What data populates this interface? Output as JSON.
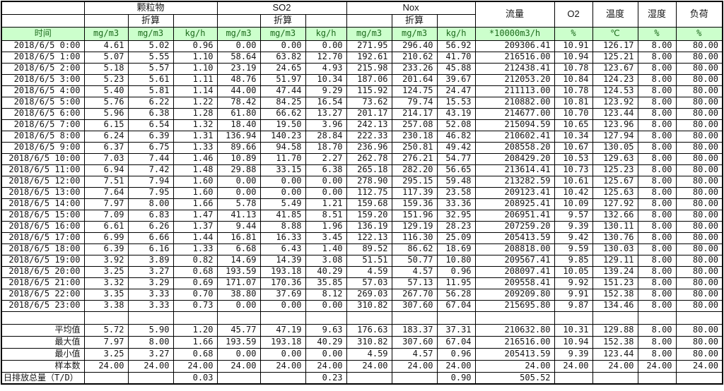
{
  "table": {
    "time_label": "时间",
    "groups": {
      "pm": "颗粒物",
      "so2": "SO2",
      "nox": "Nox",
      "flow": "流量",
      "o2": "O2",
      "temp": "温度",
      "humidity": "湿度",
      "load": "负荷"
    },
    "subheader": "折算",
    "units": [
      "mg/m3",
      "mg/m3",
      "kg/h",
      "mg/m3",
      "mg/m3",
      "kg/h",
      "mg/m3",
      "mg/m3",
      "kg/h",
      "*10000m3/h",
      "%",
      "℃",
      "%",
      "%"
    ],
    "rows": [
      {
        "time": "2018/6/5 0:00",
        "values": [
          "4.61",
          "5.02",
          "0.96",
          "0.00",
          "0.00",
          "0.00",
          "271.95",
          "296.40",
          "56.92",
          "209306.41",
          "10.91",
          "126.17",
          "8.00",
          "80.00"
        ]
      },
      {
        "time": "2018/6/5 1:00",
        "values": [
          "5.07",
          "5.55",
          "1.10",
          "58.64",
          "63.82",
          "12.70",
          "192.61",
          "210.62",
          "41.70",
          "216516.00",
          "10.94",
          "125.21",
          "8.00",
          "80.00"
        ]
      },
      {
        "time": "2018/6/5 2:00",
        "values": [
          "5.18",
          "5.57",
          "1.10",
          "23.19",
          "24.65",
          "4.93",
          "215.98",
          "233.26",
          "45.88",
          "212438.41",
          "10.78",
          "123.67",
          "8.00",
          "80.00"
        ]
      },
      {
        "time": "2018/6/5 3:00",
        "values": [
          "5.23",
          "5.61",
          "1.11",
          "48.76",
          "51.97",
          "10.34",
          "187.06",
          "201.64",
          "39.67",
          "212053.20",
          "10.84",
          "124.23",
          "8.00",
          "80.00"
        ]
      },
      {
        "time": "2018/6/5 4:00",
        "values": [
          "5.40",
          "5.81",
          "1.14",
          "44.00",
          "47.44",
          "9.29",
          "115.92",
          "124.75",
          "24.47",
          "211113.00",
          "10.78",
          "124.53",
          "8.00",
          "80.00"
        ]
      },
      {
        "time": "2018/6/5 5:00",
        "values": [
          "5.76",
          "6.22",
          "1.22",
          "78.42",
          "84.25",
          "16.54",
          "73.62",
          "79.74",
          "15.53",
          "210882.00",
          "10.81",
          "123.92",
          "8.00",
          "80.00"
        ]
      },
      {
        "time": "2018/6/5 6:00",
        "values": [
          "5.96",
          "6.38",
          "1.28",
          "61.80",
          "66.62",
          "13.27",
          "201.17",
          "214.17",
          "43.19",
          "214677.00",
          "10.70",
          "123.44",
          "8.00",
          "80.00"
        ]
      },
      {
        "time": "2018/6/5 7:00",
        "values": [
          "6.15",
          "6.54",
          "1.32",
          "18.40",
          "19.50",
          "3.96",
          "242.13",
          "257.08",
          "52.08",
          "215094.59",
          "10.65",
          "123.96",
          "8.00",
          "80.00"
        ]
      },
      {
        "time": "2018/6/5 8:00",
        "values": [
          "6.24",
          "6.39",
          "1.31",
          "136.94",
          "140.23",
          "28.84",
          "222.33",
          "230.18",
          "46.82",
          "210602.41",
          "10.34",
          "127.94",
          "8.00",
          "80.00"
        ]
      },
      {
        "time": "2018/6/5 9:00",
        "values": [
          "6.37",
          "6.75",
          "1.33",
          "89.66",
          "94.58",
          "18.70",
          "236.96",
          "250.81",
          "49.42",
          "208558.20",
          "10.67",
          "130.05",
          "8.00",
          "80.00"
        ]
      },
      {
        "time": "2018/6/5 10:00",
        "values": [
          "7.03",
          "7.44",
          "1.46",
          "10.89",
          "11.70",
          "2.27",
          "262.78",
          "276.21",
          "54.77",
          "208429.20",
          "10.53",
          "129.63",
          "8.00",
          "80.00"
        ]
      },
      {
        "time": "2018/6/5 11:00",
        "values": [
          "6.94",
          "7.42",
          "1.48",
          "29.88",
          "33.15",
          "6.38",
          "265.18",
          "282.20",
          "56.65",
          "213614.41",
          "10.73",
          "125.23",
          "8.00",
          "80.00"
        ]
      },
      {
        "time": "2018/6/5 12:00",
        "values": [
          "7.51",
          "7.94",
          "1.60",
          "0.00",
          "0.00",
          "0.00",
          "278.90",
          "295.15",
          "59.48",
          "213282.59",
          "10.61",
          "125.67",
          "8.00",
          "80.00"
        ]
      },
      {
        "time": "2018/6/5 13:00",
        "values": [
          "7.64",
          "7.95",
          "1.60",
          "0.00",
          "0.00",
          "0.00",
          "112.75",
          "117.39",
          "23.58",
          "209123.41",
          "10.42",
          "125.63",
          "8.00",
          "80.00"
        ]
      },
      {
        "time": "2018/6/5 14:00",
        "values": [
          "7.97",
          "8.00",
          "1.66",
          "5.78",
          "5.49",
          "1.21",
          "159.68",
          "159.36",
          "33.36",
          "208925.41",
          "10.09",
          "127.92",
          "8.00",
          "80.00"
        ]
      },
      {
        "time": "2018/6/5 15:00",
        "values": [
          "7.09",
          "6.83",
          "1.47",
          "41.13",
          "41.85",
          "8.51",
          "159.20",
          "151.96",
          "32.95",
          "206951.41",
          "9.57",
          "132.66",
          "8.00",
          "80.00"
        ]
      },
      {
        "time": "2018/6/5 16:00",
        "values": [
          "6.61",
          "6.26",
          "1.37",
          "9.44",
          "8.88",
          "1.96",
          "136.19",
          "129.19",
          "28.23",
          "207259.20",
          "9.39",
          "130.11",
          "8.00",
          "80.00"
        ]
      },
      {
        "time": "2018/6/5 17:00",
        "values": [
          "6.99",
          "6.66",
          "1.44",
          "16.81",
          "16.33",
          "3.45",
          "122.13",
          "116.30",
          "25.09",
          "205413.59",
          "9.42",
          "130.76",
          "8.00",
          "80.00"
        ]
      },
      {
        "time": "2018/6/5 18:00",
        "values": [
          "6.39",
          "6.16",
          "1.33",
          "6.68",
          "6.43",
          "1.40",
          "89.52",
          "86.62",
          "18.69",
          "208818.00",
          "9.59",
          "130.03",
          "8.00",
          "80.00"
        ]
      },
      {
        "time": "2018/6/5 19:00",
        "values": [
          "3.92",
          "3.89",
          "0.82",
          "14.69",
          "14.39",
          "3.08",
          "51.51",
          "50.77",
          "10.80",
          "209567.41",
          "9.85",
          "129.11",
          "8.00",
          "80.00"
        ]
      },
      {
        "time": "2018/6/5 20:00",
        "values": [
          "3.25",
          "3.27",
          "0.68",
          "193.59",
          "193.18",
          "40.29",
          "4.59",
          "4.57",
          "0.96",
          "208097.41",
          "10.05",
          "139.24",
          "8.00",
          "80.00"
        ]
      },
      {
        "time": "2018/6/5 21:00",
        "values": [
          "3.32",
          "3.29",
          "0.69",
          "171.07",
          "170.36",
          "35.85",
          "57.03",
          "57.13",
          "11.95",
          "209558.41",
          "9.92",
          "151.23",
          "8.00",
          "80.00"
        ]
      },
      {
        "time": "2018/6/5 22:00",
        "values": [
          "3.35",
          "3.33",
          "0.70",
          "38.80",
          "37.69",
          "8.12",
          "269.03",
          "267.70",
          "56.28",
          "209209.80",
          "9.91",
          "152.38",
          "8.00",
          "80.00"
        ]
      },
      {
        "time": "2018/6/5 23:00",
        "values": [
          "3.38",
          "3.33",
          "0.73",
          "0.00",
          "0.00",
          "0.00",
          "310.82",
          "307.60",
          "67.04",
          "215695.80",
          "9.87",
          "134.46",
          "8.00",
          "80.00"
        ]
      }
    ],
    "summary": [
      {
        "label": "平均值",
        "align": "right",
        "values": [
          "5.72",
          "5.90",
          "1.20",
          "45.77",
          "47.19",
          "9.63",
          "176.63",
          "183.37",
          "37.31",
          "210632.80",
          "10.31",
          "129.88",
          "8.00",
          "80.00"
        ]
      },
      {
        "label": "最大值",
        "align": "right",
        "values": [
          "7.97",
          "8.00",
          "1.66",
          "193.59",
          "193.18",
          "40.29",
          "310.82",
          "307.60",
          "67.04",
          "216516.00",
          "10.94",
          "152.38",
          "8.00",
          "80.00"
        ]
      },
      {
        "label": "最小值",
        "align": "right",
        "values": [
          "3.25",
          "3.27",
          "0.68",
          "0.00",
          "0.00",
          "0.00",
          "4.59",
          "4.57",
          "0.96",
          "205413.59",
          "9.39",
          "123.44",
          "8.00",
          "80.00"
        ]
      },
      {
        "label": "样本数",
        "align": "right",
        "values": [
          "24.00",
          "24.00",
          "24.00",
          "24.00",
          "24.00",
          "24.00",
          "24.00",
          "24.00",
          "24.00",
          "24.00",
          "24.00",
          "24.00",
          "24.00",
          "24.00"
        ]
      },
      {
        "label": "日排放总量（T/D）",
        "align": "left",
        "values": [
          "",
          "",
          "0.03",
          "",
          "",
          "0.23",
          "",
          "",
          "0.90",
          "505.52",
          "",
          "",
          "",
          ""
        ]
      }
    ],
    "colors": {
      "unit_row_bg": "#ccffcc",
      "unit_row_text": "#1d6b1d",
      "border": "#000000"
    }
  }
}
